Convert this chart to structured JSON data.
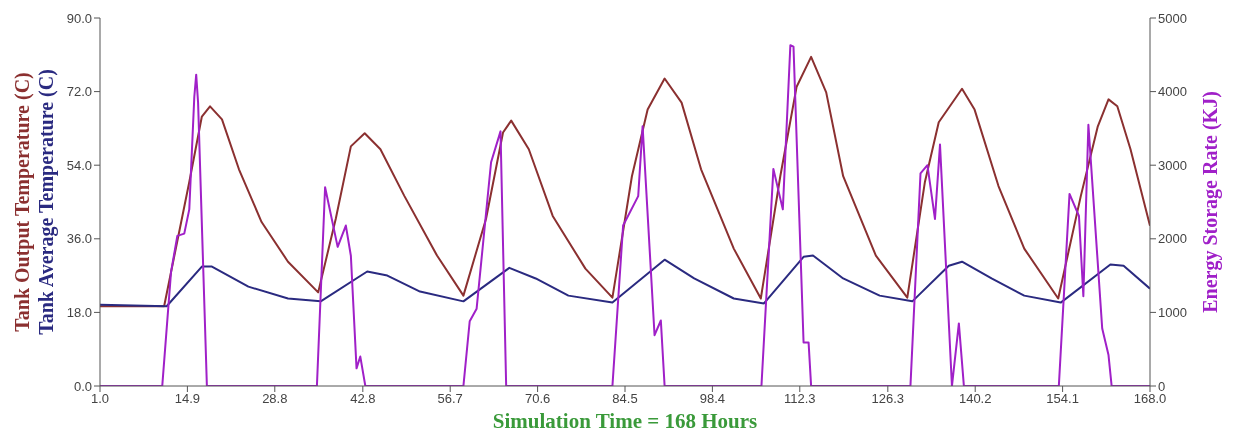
{
  "chart_data": {
    "type": "line",
    "ylabel": [
      "Tank Output Temperature (C)",
      "Tank Average Temperature (C)"
    ],
    "y2label": "Energy Storage Rate (KJ)",
    "xlabel": "Simulation Time = 168 Hours",
    "xlim": [
      1,
      168
    ],
    "xticks": [
      {
        "value": 1,
        "label": "1.0"
      },
      14.9,
      28.8,
      42.8,
      56.7,
      70.6,
      84.5,
      98.4,
      112.3,
      126.3,
      140.2,
      154.1,
      {
        "value": 168,
        "label": "168.0"
      }
    ],
    "ylim": [
      0,
      90
    ],
    "yticks": [
      {
        "value": 0,
        "label": "0.0"
      },
      {
        "value": 18,
        "label": "18.0"
      },
      {
        "value": 36,
        "label": "36.0"
      },
      {
        "value": 54,
        "label": "54.0"
      },
      {
        "value": 72,
        "label": "72.0"
      },
      {
        "value": 90,
        "label": "90.0"
      }
    ],
    "y2lim": [
      0,
      5000
    ],
    "y2ticks": [
      0,
      1000,
      2000,
      3000,
      4000,
      5000
    ],
    "marker": "none",
    "line_style": "solid",
    "series": [
      {
        "color": "#8b3030",
        "x": [
          1,
          11.2,
          15.2,
          17.2,
          18.5,
          20.4,
          23.1,
          26.7,
          30.9,
          35.7,
          38.5,
          40.9,
          43.1,
          45.6,
          49.4,
          54.6,
          58.8,
          62.4,
          65.1,
          66.4,
          69.2,
          73.0,
          78.2,
          82.5,
          85.6,
          88.1,
          90.8,
          93.5,
          96.6,
          101.8,
          106.1,
          109.2,
          111.8,
          114.1,
          116.5,
          119.2,
          124.4,
          129.4,
          132.2,
          134.4,
          138.1,
          140.1,
          143.9,
          148.0,
          153.4,
          157.0,
          159.7,
          161.4,
          162.8,
          164.9,
          168
        ],
        "values": [
          19.5,
          19.5,
          49.9,
          65.9,
          68.4,
          65.2,
          53.0,
          40.1,
          30.4,
          22.9,
          40.9,
          58.6,
          61.8,
          57.9,
          46.5,
          31.9,
          22.1,
          40.9,
          62.0,
          64.9,
          57.9,
          41.6,
          28.7,
          21.6,
          51.3,
          67.6,
          75.2,
          69.3,
          53.0,
          33.6,
          21.4,
          51.3,
          73.2,
          80.5,
          71.8,
          51.3,
          31.9,
          21.6,
          49.9,
          64.5,
          72.7,
          67.6,
          48.9,
          33.6,
          21.4,
          46.5,
          63.5,
          70.1,
          68.4,
          57.9,
          39.2
        ]
      },
      {
        "color": "#2a2a80",
        "x": [
          1,
          11.6,
          17.2,
          18.8,
          24.6,
          30.9,
          36.1,
          43.5,
          46.7,
          51.9,
          58.8,
          66.1,
          70.3,
          75.5,
          82.5,
          90.8,
          95.5,
          101.8,
          106.6,
          112.9,
          114.4,
          119.2,
          125.0,
          130.2,
          136.0,
          138.1,
          142.8,
          148.0,
          153.8,
          161.7,
          163.8,
          168
        ],
        "values": [
          19.9,
          19.5,
          29.2,
          29.2,
          24.3,
          21.4,
          20.7,
          28.0,
          27.0,
          23.1,
          20.7,
          28.9,
          26.3,
          22.1,
          20.4,
          30.9,
          26.3,
          21.4,
          20.2,
          31.6,
          31.9,
          26.3,
          22.1,
          20.7,
          29.4,
          30.4,
          26.3,
          22.1,
          20.4,
          29.7,
          29.4,
          23.8
        ]
      },
      {
        "color": "#a020c8",
        "axis": "y2",
        "x": [
          1,
          10.9,
          12.3,
          13.3,
          14.4,
          15.2,
          16.0,
          16.3,
          16.6,
          18.0,
          35.5,
          36.8,
          38.8,
          40.1,
          40.9,
          41.8,
          42.4,
          43.2,
          58.8,
          59.8,
          60.9,
          63.2,
          64.7,
          65.6,
          82.5,
          84.2,
          86.6,
          87.3,
          89.2,
          90.2,
          90.8,
          106.2,
          108.1,
          109.6,
          110.8,
          111.3,
          112.9,
          113.7,
          114.1,
          129.9,
          131.5,
          132.6,
          133.8,
          134.6,
          136.5,
          137.6,
          138.4,
          153.5,
          155.2,
          156.7,
          157.4,
          158.2,
          160.4,
          161.4,
          161.9,
          168
        ],
        "values": [
          0,
          0,
          1550,
          2040,
          2070,
          2400,
          3930,
          4230,
          3850,
          0,
          0,
          2700,
          1890,
          2180,
          1770,
          240,
          400,
          0,
          0,
          880,
          1050,
          3040,
          3460,
          0,
          0,
          2180,
          2580,
          3530,
          690,
          890,
          0,
          0,
          2950,
          2400,
          4630,
          4610,
          590,
          590,
          0,
          0,
          2890,
          3000,
          2270,
          3280,
          0,
          850,
          0,
          0,
          2610,
          2310,
          1220,
          3550,
          780,
          420,
          0,
          0
        ]
      }
    ]
  }
}
